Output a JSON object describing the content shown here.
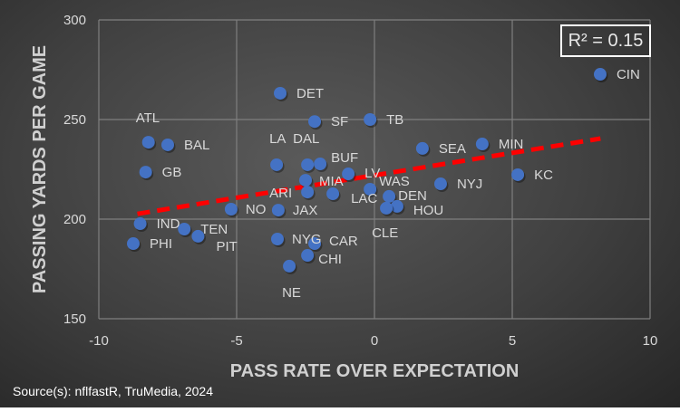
{
  "chart_data": {
    "type": "scatter",
    "xlabel": "PASS RATE OVER EXPECTATION",
    "ylabel": "PASSING YARDS PER GAME",
    "xlim": [
      -10,
      10
    ],
    "ylim": [
      150,
      300
    ],
    "xticks": [
      -10,
      -5,
      0,
      5,
      10
    ],
    "yticks": [
      150,
      200,
      250,
      300
    ],
    "grid": true,
    "points": [
      {
        "label": "ATL",
        "x": -8.2,
        "y": 238.6
      },
      {
        "label": "BAL",
        "x": -7.5,
        "y": 237.3
      },
      {
        "label": "GB",
        "x": -8.3,
        "y": 223.6
      },
      {
        "label": "IND",
        "x": -8.5,
        "y": 197.7
      },
      {
        "label": "PHI",
        "x": -8.75,
        "y": 187.7
      },
      {
        "label": "TEN",
        "x": -6.9,
        "y": 195.0
      },
      {
        "label": "PIT",
        "x": -6.4,
        "y": 191.4
      },
      {
        "label": "NO",
        "x": -5.2,
        "y": 205.0
      },
      {
        "label": "LA",
        "x": -3.55,
        "y": 227.3
      },
      {
        "label": "DAL",
        "x": -2.43,
        "y": 227.3
      },
      {
        "label": "BUF",
        "x": -1.97,
        "y": 227.7
      },
      {
        "label": "MIA",
        "x": -2.5,
        "y": 219.5
      },
      {
        "label": "ARI",
        "x": -2.43,
        "y": 213.6
      },
      {
        "label": "LAC",
        "x": -1.51,
        "y": 212.7
      },
      {
        "label": "LV",
        "x": -0.95,
        "y": 222.7
      },
      {
        "label": "WAS",
        "x": -0.16,
        "y": 215.0
      },
      {
        "label": "DEN",
        "x": 0.53,
        "y": 211.4
      },
      {
        "label": "HOU",
        "x": 0.82,
        "y": 206.4
      },
      {
        "label": "CLE",
        "x": 0.43,
        "y": 205.5
      },
      {
        "label": "NYJ",
        "x": 2.4,
        "y": 217.7
      },
      {
        "label": "SEA",
        "x": 1.74,
        "y": 235.5
      },
      {
        "label": "JAX",
        "x": -3.49,
        "y": 204.5
      },
      {
        "label": "NYG",
        "x": -3.52,
        "y": 190.0
      },
      {
        "label": "CAR",
        "x": -2.17,
        "y": 187.7
      },
      {
        "label": "CHI",
        "x": -2.43,
        "y": 181.8
      },
      {
        "label": "NE",
        "x": -3.09,
        "y": 176.4
      },
      {
        "label": "DET",
        "x": -3.42,
        "y": 263.2
      },
      {
        "label": "SF",
        "x": -2.17,
        "y": 249.0
      },
      {
        "label": "TB",
        "x": -0.16,
        "y": 250.0
      },
      {
        "label": "CIN",
        "x": 8.19,
        "y": 272.7
      },
      {
        "label": "MIN",
        "x": 3.91,
        "y": 237.7
      },
      {
        "label": "KC",
        "x": 5.2,
        "y": 222.3
      }
    ],
    "trendline": {
      "type": "linear",
      "x_range": [
        -8.6,
        8.2
      ],
      "slope": 2.25,
      "intercept": 222.0,
      "r_squared_label": "R² = 0.15"
    },
    "colors": {
      "point": "#4472c4",
      "trendline": "#ff0000",
      "grid": "#7f7f7f"
    }
  },
  "source": "Source(s): nflfastR, TruMedia, 2024"
}
